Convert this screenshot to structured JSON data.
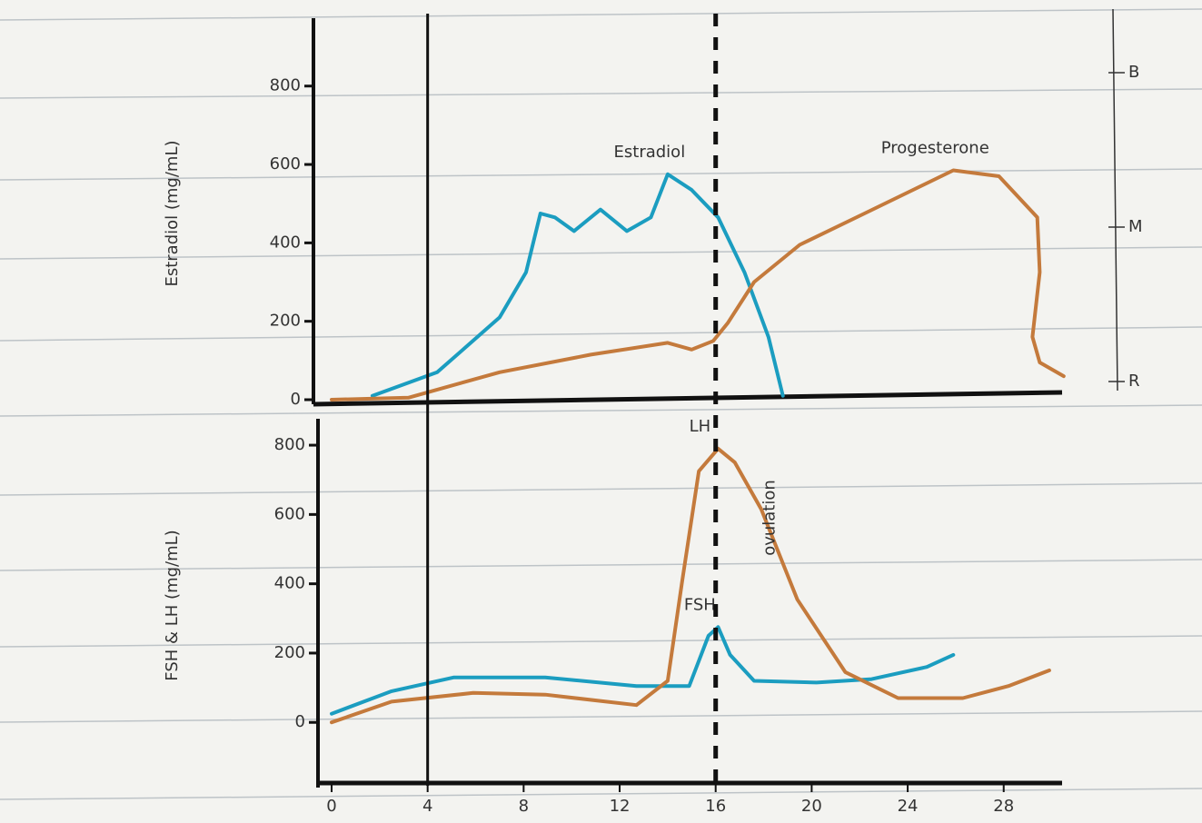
{
  "chart_data": [
    {
      "type": "line",
      "ylabel": "Estradiol (mg/mL)",
      "xlim": [
        0,
        31
      ],
      "ylim": [
        0,
        950
      ],
      "yticks": [
        0,
        200,
        400,
        600,
        800
      ],
      "right_axis_labels": [
        "B",
        "M",
        "R"
      ],
      "series": [
        {
          "name": "Estradiol",
          "color": "#1b9dc0",
          "x": [
            1.7,
            4.4,
            7,
            8.1,
            8.7,
            9.3,
            10.1,
            11.2,
            12.3,
            13.3,
            14,
            15,
            16.1,
            17.2,
            18.2,
            18.8
          ],
          "values": [
            10,
            70,
            210,
            325,
            475,
            465,
            430,
            485,
            430,
            465,
            575,
            535,
            465,
            325,
            160,
            10
          ]
        },
        {
          "name": "Progesterone",
          "color": "#c47a3c",
          "x": [
            0,
            3.2,
            7,
            10.8,
            14,
            15,
            15.9,
            16.5,
            17.6,
            19.5,
            22.2,
            25.9,
            27.8,
            29.4,
            29.5,
            29.2,
            29.5,
            30.5
          ],
          "values": [
            0,
            5,
            70,
            115,
            145,
            128,
            150,
            195,
            300,
            395,
            475,
            585,
            570,
            465,
            325,
            160,
            95,
            60
          ]
        }
      ]
    },
    {
      "type": "line",
      "ylabel": "FSH & LH (mg/mL)",
      "xlim": [
        0,
        31
      ],
      "ylim": [
        -175,
        850
      ],
      "yticks": [
        0,
        200,
        400,
        600,
        800
      ],
      "xticks": [
        0,
        4,
        8,
        12,
        16,
        20,
        24,
        28
      ],
      "series": [
        {
          "name": "FSH",
          "color": "#1b9dc0",
          "x": [
            0,
            2.5,
            5.1,
            8.9,
            12.7,
            14.9,
            15.7,
            16.1,
            16.6,
            17.6,
            20.2,
            22.5,
            24.8,
            25.9
          ],
          "values": [
            25,
            90,
            130,
            130,
            105,
            105,
            250,
            275,
            195,
            120,
            115,
            125,
            160,
            195
          ]
        },
        {
          "name": "LH",
          "color": "#c47a3c",
          "x": [
            0,
            2.5,
            5.9,
            8.9,
            12.7,
            14,
            14.6,
            15.3,
            16.1,
            16.8,
            17.9,
            19.4,
            21.4,
            23.6,
            26.3,
            28.2,
            29.9
          ],
          "values": [
            0,
            60,
            85,
            80,
            50,
            120,
            405,
            725,
            790,
            750,
            615,
            355,
            145,
            70,
            70,
            105,
            150
          ]
        }
      ]
    }
  ],
  "reference_lines": [
    {
      "x": 4,
      "style": "solid"
    },
    {
      "x": 16,
      "style": "dashed",
      "label": "ovulation"
    }
  ]
}
